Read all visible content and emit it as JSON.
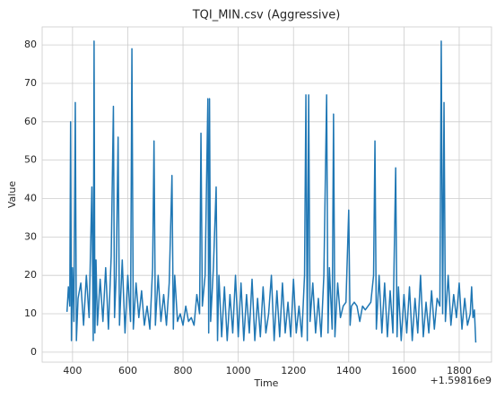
{
  "chart_data": {
    "type": "line",
    "title": "TQI_MIN.csv (Aggressive)",
    "x_label": "Time",
    "y_label": "Value",
    "x_offset_label": "+1.59816e9",
    "x": [
      380,
      385,
      390,
      393,
      396,
      400,
      405,
      410,
      414,
      420,
      430,
      440,
      450,
      460,
      470,
      475,
      478,
      481,
      485,
      490,
      500,
      510,
      520,
      530,
      540,
      548,
      552,
      558,
      565,
      570,
      580,
      590,
      600,
      610,
      615,
      620,
      630,
      640,
      650,
      660,
      670,
      680,
      690,
      695,
      700,
      710,
      720,
      730,
      740,
      750,
      760,
      765,
      770,
      780,
      790,
      800,
      810,
      820,
      830,
      840,
      850,
      860,
      865,
      870,
      880,
      890,
      893,
      896,
      900,
      910,
      920,
      925,
      930,
      940,
      950,
      960,
      970,
      980,
      990,
      1000,
      1010,
      1020,
      1030,
      1040,
      1050,
      1060,
      1070,
      1080,
      1090,
      1100,
      1110,
      1120,
      1130,
      1140,
      1150,
      1160,
      1170,
      1180,
      1190,
      1200,
      1210,
      1220,
      1230,
      1240,
      1245,
      1250,
      1255,
      1260,
      1270,
      1280,
      1290,
      1300,
      1310,
      1320,
      1325,
      1330,
      1340,
      1345,
      1350,
      1360,
      1370,
      1380,
      1390,
      1400,
      1405,
      1410,
      1420,
      1430,
      1440,
      1450,
      1460,
      1470,
      1480,
      1490,
      1495,
      1500,
      1510,
      1520,
      1530,
      1540,
      1550,
      1560,
      1570,
      1575,
      1580,
      1590,
      1600,
      1610,
      1620,
      1630,
      1640,
      1650,
      1660,
      1670,
      1680,
      1690,
      1700,
      1710,
      1720,
      1730,
      1735,
      1740,
      1745,
      1750,
      1760,
      1770,
      1780,
      1790,
      1800,
      1810,
      1820,
      1830,
      1840,
      1845,
      1850,
      1855,
      1860
    ],
    "series": [
      {
        "name": "Value",
        "color": "#1f77b4",
        "values": [
          10.5,
          17,
          12,
          60,
          3,
          22,
          8,
          65,
          3,
          14,
          18,
          7,
          20,
          9,
          43,
          3,
          81,
          5,
          24,
          7,
          19,
          8,
          22,
          6,
          25,
          64,
          9,
          20,
          56,
          7,
          24,
          5,
          20,
          8,
          79,
          6,
          18,
          9,
          16,
          7,
          12,
          6,
          22,
          55,
          7,
          20,
          8,
          15,
          7,
          18,
          46,
          6,
          20,
          8,
          10,
          7,
          12,
          8,
          9,
          7,
          15,
          10,
          57,
          12,
          20,
          66,
          5,
          66,
          8,
          22,
          43,
          3,
          20,
          4,
          17,
          3,
          15,
          5,
          20,
          4,
          18,
          3,
          15,
          5,
          19,
          3,
          14,
          4,
          17,
          5,
          10,
          20,
          3,
          16,
          4,
          18,
          5,
          13,
          4,
          19,
          5,
          12,
          4,
          20,
          67,
          3,
          67,
          8,
          18,
          5,
          14,
          4,
          20,
          67,
          5,
          22,
          6,
          62,
          4,
          18,
          9,
          12,
          13,
          37,
          7,
          12,
          13,
          12,
          8,
          12,
          11,
          12,
          13,
          20,
          55,
          6,
          20,
          5,
          18,
          4,
          16,
          5,
          48,
          4,
          17,
          3,
          15,
          5,
          17,
          3,
          14,
          5,
          20,
          4,
          13,
          5,
          16,
          6,
          14,
          12,
          81,
          10,
          65,
          8,
          20,
          7,
          15,
          9,
          18,
          6,
          14,
          7,
          10,
          17,
          9,
          11,
          2.5
        ]
      }
    ],
    "xlim": [
      290,
      1917
    ],
    "ylim": [
      -2.6,
      84.7
    ],
    "xticks": [
      400,
      600,
      800,
      1000,
      1200,
      1400,
      1600,
      1800
    ],
    "yticks": [
      0,
      10,
      20,
      30,
      40,
      50,
      60,
      70,
      80
    ],
    "grid": true
  }
}
